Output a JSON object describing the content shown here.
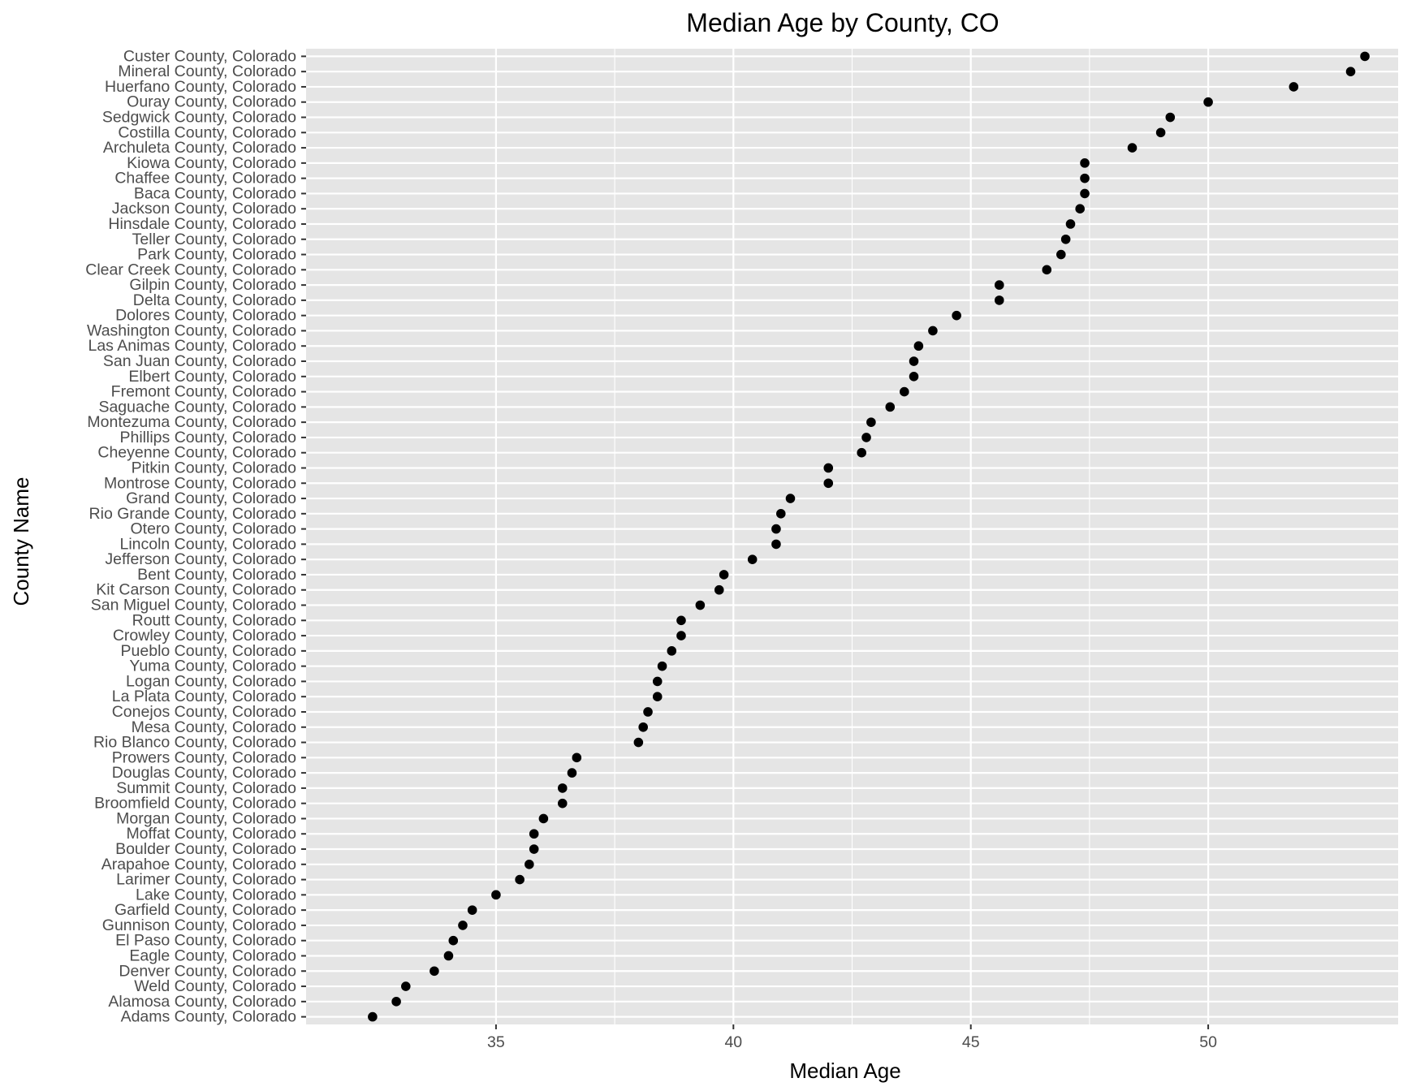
{
  "chart_data": {
    "type": "scatter",
    "title": "Median Age by County, CO",
    "xlabel": "Median Age",
    "ylabel": "County Name",
    "xlim": [
      31.0,
      54.0
    ],
    "x_ticks": [
      "35",
      "40",
      "45",
      "50"
    ],
    "grid": true,
    "legend": "none",
    "colors": {
      "panel": "#e5e5e5",
      "grid": "#ffffff",
      "point": "#000000",
      "tick_text": "#4d4d4d"
    },
    "points": [
      {
        "county": "Custer County, Colorado",
        "age": 53.3
      },
      {
        "county": "Mineral County, Colorado",
        "age": 53.0
      },
      {
        "county": "Huerfano County, Colorado",
        "age": 51.8
      },
      {
        "county": "Ouray County, Colorado",
        "age": 50.0
      },
      {
        "county": "Sedgwick County, Colorado",
        "age": 49.2
      },
      {
        "county": "Costilla County, Colorado",
        "age": 49.0
      },
      {
        "county": "Archuleta County, Colorado",
        "age": 48.4
      },
      {
        "county": "Kiowa County, Colorado",
        "age": 47.4
      },
      {
        "county": "Chaffee County, Colorado",
        "age": 47.4
      },
      {
        "county": "Baca County, Colorado",
        "age": 47.4
      },
      {
        "county": "Jackson County, Colorado",
        "age": 47.3
      },
      {
        "county": "Hinsdale County, Colorado",
        "age": 47.1
      },
      {
        "county": "Teller County, Colorado",
        "age": 47.0
      },
      {
        "county": "Park County, Colorado",
        "age": 46.9
      },
      {
        "county": "Clear Creek County, Colorado",
        "age": 46.6
      },
      {
        "county": "Gilpin County, Colorado",
        "age": 45.6
      },
      {
        "county": "Delta County, Colorado",
        "age": 45.6
      },
      {
        "county": "Dolores County, Colorado",
        "age": 44.7
      },
      {
        "county": "Washington County, Colorado",
        "age": 44.2
      },
      {
        "county": "Las Animas County, Colorado",
        "age": 43.9
      },
      {
        "county": "San Juan County, Colorado",
        "age": 43.8
      },
      {
        "county": "Elbert County, Colorado",
        "age": 43.8
      },
      {
        "county": "Fremont County, Colorado",
        "age": 43.6
      },
      {
        "county": "Saguache County, Colorado",
        "age": 43.3
      },
      {
        "county": "Montezuma County, Colorado",
        "age": 42.9
      },
      {
        "county": "Phillips County, Colorado",
        "age": 42.8
      },
      {
        "county": "Cheyenne County, Colorado",
        "age": 42.7
      },
      {
        "county": "Pitkin County, Colorado",
        "age": 42.0
      },
      {
        "county": "Montrose County, Colorado",
        "age": 42.0
      },
      {
        "county": "Grand County, Colorado",
        "age": 41.2
      },
      {
        "county": "Rio Grande County, Colorado",
        "age": 41.0
      },
      {
        "county": "Otero County, Colorado",
        "age": 40.9
      },
      {
        "county": "Lincoln County, Colorado",
        "age": 40.9
      },
      {
        "county": "Jefferson County, Colorado",
        "age": 40.4
      },
      {
        "county": "Bent County, Colorado",
        "age": 39.8
      },
      {
        "county": "Kit Carson County, Colorado",
        "age": 39.7
      },
      {
        "county": "San Miguel County, Colorado",
        "age": 39.3
      },
      {
        "county": "Routt County, Colorado",
        "age": 38.9
      },
      {
        "county": "Crowley County, Colorado",
        "age": 38.9
      },
      {
        "county": "Pueblo County, Colorado",
        "age": 38.7
      },
      {
        "county": "Yuma County, Colorado",
        "age": 38.5
      },
      {
        "county": "Logan County, Colorado",
        "age": 38.4
      },
      {
        "county": "La Plata County, Colorado",
        "age": 38.4
      },
      {
        "county": "Conejos County, Colorado",
        "age": 38.2
      },
      {
        "county": "Mesa County, Colorado",
        "age": 38.1
      },
      {
        "county": "Rio Blanco County, Colorado",
        "age": 38.0
      },
      {
        "county": "Prowers County, Colorado",
        "age": 36.7
      },
      {
        "county": "Douglas County, Colorado",
        "age": 36.6
      },
      {
        "county": "Summit County, Colorado",
        "age": 36.4
      },
      {
        "county": "Broomfield County, Colorado",
        "age": 36.4
      },
      {
        "county": "Morgan County, Colorado",
        "age": 36.0
      },
      {
        "county": "Moffat County, Colorado",
        "age": 35.8
      },
      {
        "county": "Boulder County, Colorado",
        "age": 35.8
      },
      {
        "county": "Arapahoe County, Colorado",
        "age": 35.7
      },
      {
        "county": "Larimer County, Colorado",
        "age": 35.5
      },
      {
        "county": "Lake County, Colorado",
        "age": 35.0
      },
      {
        "county": "Garfield County, Colorado",
        "age": 34.5
      },
      {
        "county": "Gunnison County, Colorado",
        "age": 34.3
      },
      {
        "county": "El Paso County, Colorado",
        "age": 34.1
      },
      {
        "county": "Eagle County, Colorado",
        "age": 34.0
      },
      {
        "county": "Denver County, Colorado",
        "age": 33.7
      },
      {
        "county": "Weld County, Colorado",
        "age": 33.1
      },
      {
        "county": "Alamosa County, Colorado",
        "age": 32.9
      },
      {
        "county": "Adams County, Colorado",
        "age": 32.4
      }
    ]
  }
}
